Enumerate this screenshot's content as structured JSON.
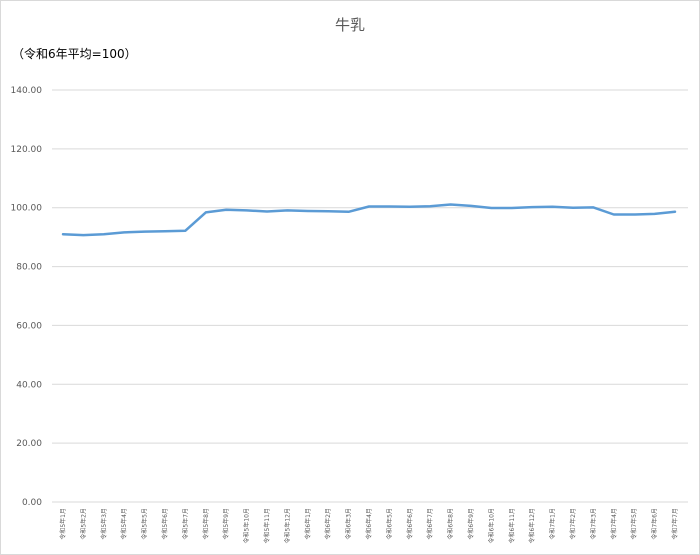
{
  "chart_data": {
    "type": "line",
    "title": "牛乳",
    "subtitle": "（令和6年平均=100）",
    "ylim": [
      0,
      140
    ],
    "yticks": [
      "0.00",
      "20.00",
      "40.00",
      "60.00",
      "80.00",
      "100.00",
      "120.00",
      "140.00"
    ],
    "grid": true,
    "legend": "none",
    "line_color": "#5b9bd5",
    "categories": [
      "令和5年1月",
      "令和5年2月",
      "令和5年3月",
      "令和5年4月",
      "令和5年5月",
      "令和5年6月",
      "令和5年7月",
      "令和5年8月",
      "令和5年9月",
      "令和5年10月",
      "令和5年11月",
      "令和5年12月",
      "令和6年1月",
      "令和6年2月",
      "令和6年3月",
      "令和6年4月",
      "令和6年5月",
      "令和6年6月",
      "令和6年7月",
      "令和6年8月",
      "令和6年9月",
      "令和6年10月",
      "令和6年11月",
      "令和6年12月",
      "令和7年1月",
      "令和7年2月",
      "令和7年3月",
      "令和7年4月",
      "令和7年5月",
      "令和7年6月",
      "令和7年7月"
    ],
    "values": [
      91.0,
      90.7,
      91.0,
      91.6,
      91.9,
      92.0,
      92.2,
      98.4,
      99.3,
      99.1,
      98.7,
      99.1,
      98.9,
      98.8,
      98.6,
      100.4,
      100.4,
      100.3,
      100.5,
      101.1,
      100.6,
      99.9,
      99.9,
      100.2,
      100.3,
      100.0,
      100.1,
      97.7,
      97.7,
      97.9,
      98.6
    ]
  }
}
